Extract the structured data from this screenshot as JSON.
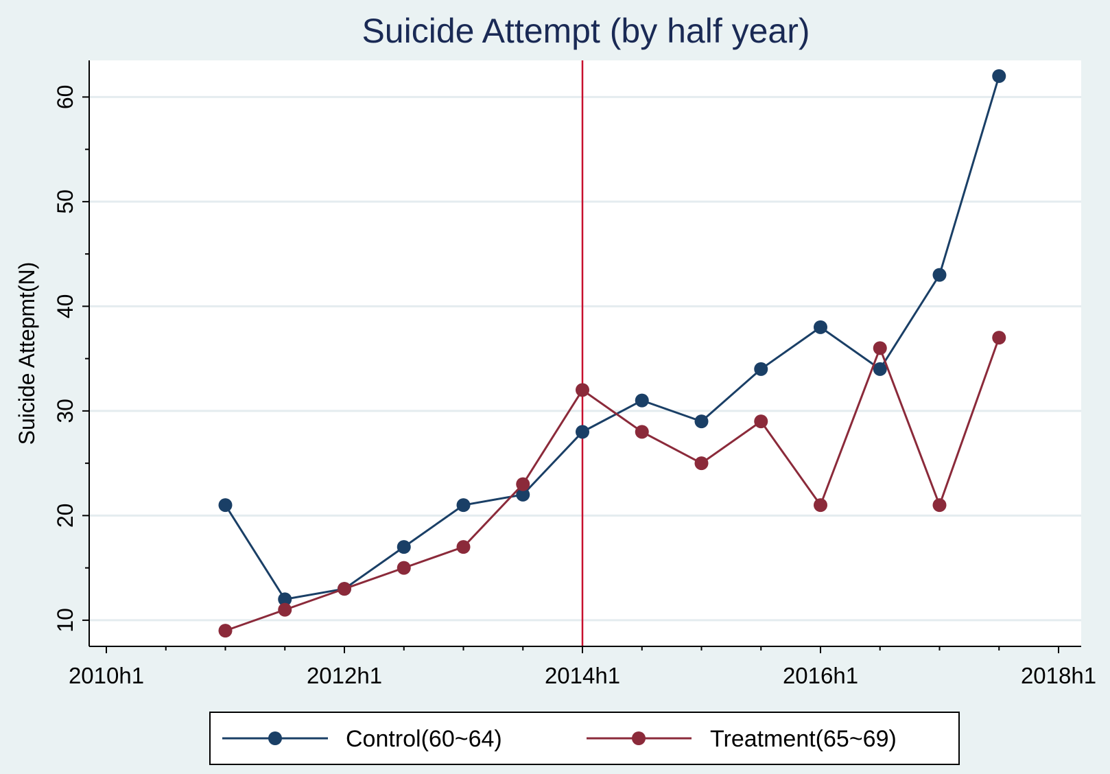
{
  "chart_data": {
    "type": "line",
    "title": "Suicide Attempt (by half year)",
    "ylabel": "Suicide Attepmt(N)",
    "xlabel": "",
    "x_ticks": [
      "2010h1",
      "2012h1",
      "2014h1",
      "2016h1",
      "2018h1"
    ],
    "x_minor_ticks": [
      "2010h2",
      "2011h1",
      "2011h2",
      "2012h2",
      "2013h1",
      "2013h2",
      "2014h2",
      "2015h1",
      "2015h2",
      "2016h2",
      "2017h1",
      "2017h2"
    ],
    "y_ticks": [
      10,
      20,
      30,
      40,
      50,
      60
    ],
    "y_minor_ticks": [
      15,
      25,
      35,
      45,
      55
    ],
    "xlim": [
      "2010h1",
      "2018h1"
    ],
    "ylim": [
      7.5,
      63.5
    ],
    "grid": "horizontal",
    "legend_position": "bottom",
    "reference_line": {
      "x": "2014h1",
      "color": "#c8102e"
    },
    "x": [
      "2011h1",
      "2011h2",
      "2012h1",
      "2012h2",
      "2013h1",
      "2013h2",
      "2014h1",
      "2014h2",
      "2015h1",
      "2015h2",
      "2016h1",
      "2016h2",
      "2017h1",
      "2017h2"
    ],
    "series": [
      {
        "name": "Control(60~64)",
        "color": "#1a3f66",
        "values": [
          21,
          12,
          13,
          17,
          21,
          22,
          28,
          31,
          29,
          34,
          38,
          34,
          43,
          62
        ]
      },
      {
        "name": "Treatment(65~69)",
        "color": "#8b2a3a",
        "values": [
          9,
          11,
          13,
          15,
          17,
          23,
          32,
          28,
          25,
          29,
          21,
          36,
          21,
          37
        ]
      }
    ]
  }
}
